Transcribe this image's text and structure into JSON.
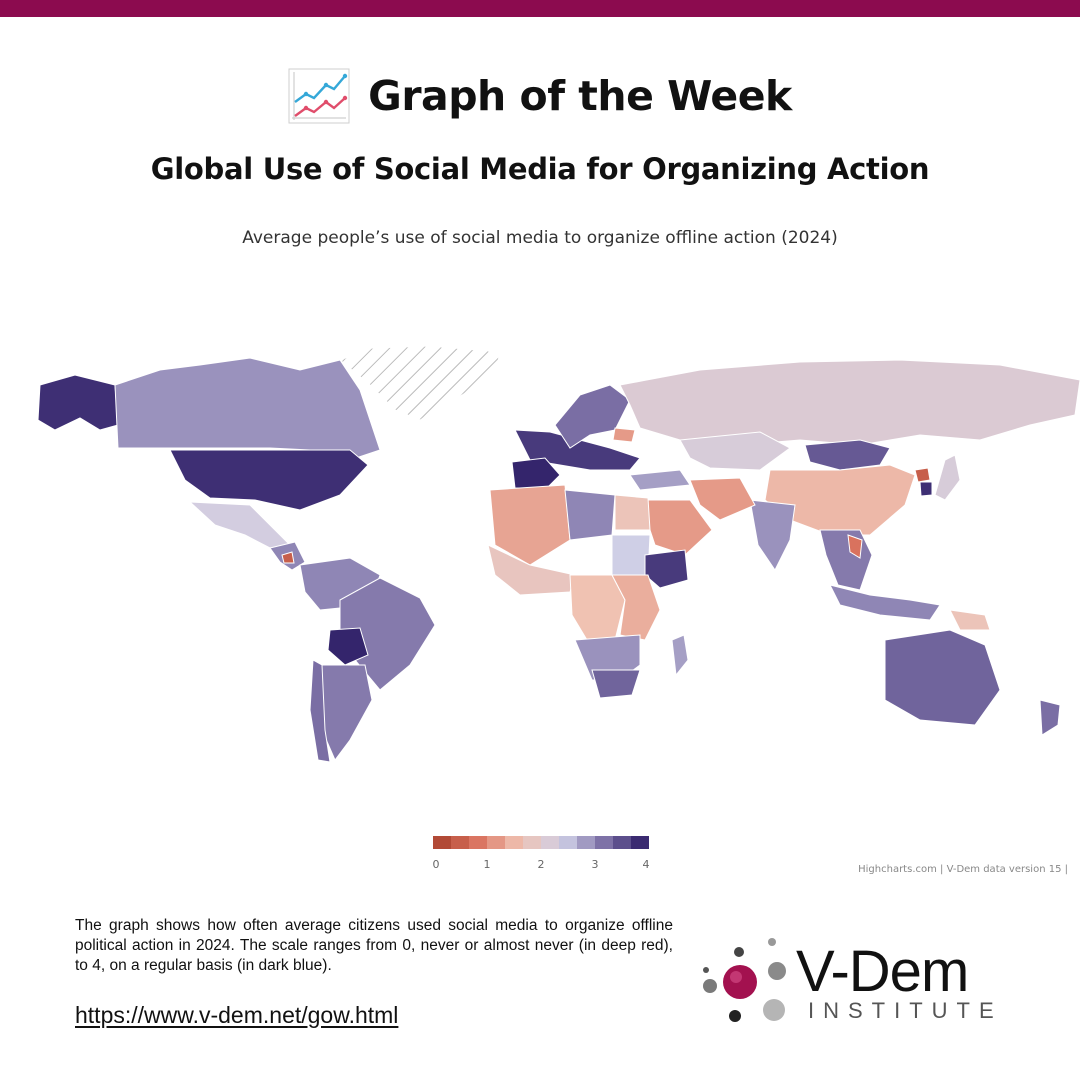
{
  "brand": {
    "accent": "#8c0b4f"
  },
  "header": {
    "title": "Graph of the Week",
    "icon": "chart-increasing-icon",
    "subtitle": "Global Use of Social Media for Organizing Action"
  },
  "map": {
    "caption": "Average people’s use of social media to organize offline action (2024)",
    "no_data_pattern": "diagonal-hatch",
    "credits": "Highcharts.com | V-Dem data version 15 |"
  },
  "chart_data": {
    "type": "choropleth",
    "title": "Average people’s use of social media to organize offline action (2024)",
    "color_scale": {
      "min": 0,
      "max": 4,
      "ticks": [
        "0",
        "1",
        "2",
        "3",
        "4"
      ],
      "colors": [
        "#a8402c",
        "#d9725e",
        "#f0c2b2",
        "#cfcfe6",
        "#7a6ea4",
        "#2a1a64"
      ]
    },
    "regions": [
      {
        "name": "Alaska / USA",
        "value": 3.8
      },
      {
        "name": "Canada",
        "value": 2.9
      },
      {
        "name": "United States",
        "value": 3.8
      },
      {
        "name": "Mexico",
        "value": 2.3
      },
      {
        "name": "Central America",
        "value": 3.0
      },
      {
        "name": "Nicaragua",
        "value": 0.5
      },
      {
        "name": "Northern South America",
        "value": 3.0
      },
      {
        "name": "Brazil",
        "value": 3.1
      },
      {
        "name": "Bolivia",
        "value": 3.9
      },
      {
        "name": "Argentina",
        "value": 3.1
      },
      {
        "name": "Chile",
        "value": 3.2
      },
      {
        "name": "Western Europe",
        "value": 3.7
      },
      {
        "name": "France",
        "value": 3.9
      },
      {
        "name": "Scandinavia",
        "value": 3.2
      },
      {
        "name": "Russia",
        "value": 2.1
      },
      {
        "name": "Belarus",
        "value": 1.2
      },
      {
        "name": "Kazakhstan",
        "value": 2.2
      },
      {
        "name": "Mongolia",
        "value": 3.4
      },
      {
        "name": "China",
        "value": 1.5
      },
      {
        "name": "North Korea",
        "value": 0.5
      },
      {
        "name": "South Korea",
        "value": 3.8
      },
      {
        "name": "Japan",
        "value": 2.2
      },
      {
        "name": "India",
        "value": 2.9
      },
      {
        "name": "Iran",
        "value": 1.2
      },
      {
        "name": "Turkey",
        "value": 2.8
      },
      {
        "name": "Saudi Arabia",
        "value": 1.2
      },
      {
        "name": "North Africa",
        "value": 1.3
      },
      {
        "name": "Libya",
        "value": 3.0
      },
      {
        "name": "Egypt",
        "value": 1.7
      },
      {
        "name": "Sudan",
        "value": 2.4
      },
      {
        "name": "Ethiopia",
        "value": 3.7
      },
      {
        "name": "West Africa",
        "value": 1.8
      },
      {
        "name": "Central Africa",
        "value": 1.6
      },
      {
        "name": "East Africa",
        "value": 1.4
      },
      {
        "name": "Southern Africa",
        "value": 2.9
      },
      {
        "name": "South Africa",
        "value": 3.3
      },
      {
        "name": "Madagascar",
        "value": 2.8
      },
      {
        "name": "Southeast Asia",
        "value": 3.1
      },
      {
        "name": "Vietnam",
        "value": 0.8
      },
      {
        "name": "Indonesia",
        "value": 3.0
      },
      {
        "name": "Papua New Guinea",
        "value": 1.7
      },
      {
        "name": "Australia",
        "value": 3.3
      },
      {
        "name": "New Zealand",
        "value": 3.2
      },
      {
        "name": "Greenland",
        "value": null
      }
    ]
  },
  "footer": {
    "description": "The graph shows how often average citizens used social media to organize offline political action in 2024. The scale ranges from 0, never or almost never (in deep red), to 4, on a regular basis (in dark blue).",
    "link": "https://www.v-dem.net/gow.html"
  },
  "logo": {
    "wordmark": "V-Dem",
    "subtitle": "INSTITUTE"
  }
}
